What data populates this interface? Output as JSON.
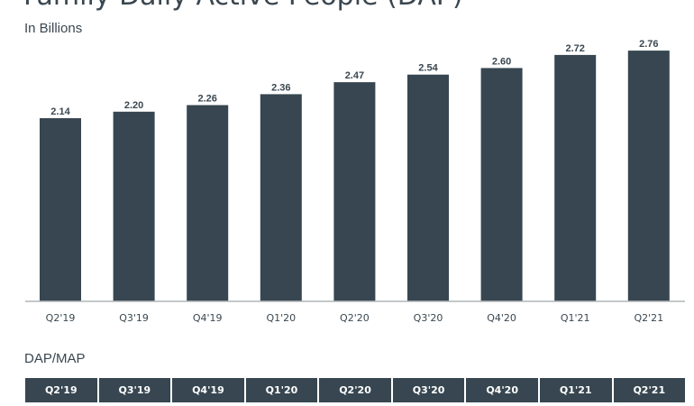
{
  "title": "Family Daily Active People (DAP)",
  "subtitle": "In Billions",
  "chart_data": {
    "type": "bar",
    "title": "Family Daily Active People (DAP)",
    "subtitle": "In Billions",
    "categories": [
      "Q2'19",
      "Q3'19",
      "Q4'19",
      "Q1'20",
      "Q2'20",
      "Q3'20",
      "Q4'20",
      "Q1'21",
      "Q2'21"
    ],
    "values": [
      2.14,
      2.2,
      2.26,
      2.36,
      2.47,
      2.54,
      2.6,
      2.72,
      2.76
    ],
    "value_labels": [
      "2.14",
      "2.20",
      "2.26",
      "2.36",
      "2.47",
      "2.54",
      "2.60",
      "2.72",
      "2.76"
    ],
    "xlabel": "",
    "ylabel": "",
    "grid": false,
    "bar_color": "#374650"
  },
  "dap_map": {
    "title": "DAP/MAP",
    "headers": [
      "Q2'19",
      "Q3'19",
      "Q4'19",
      "Q1'20",
      "Q2'20",
      "Q3'20",
      "Q4'20",
      "Q1'21",
      "Q2'21"
    ]
  }
}
